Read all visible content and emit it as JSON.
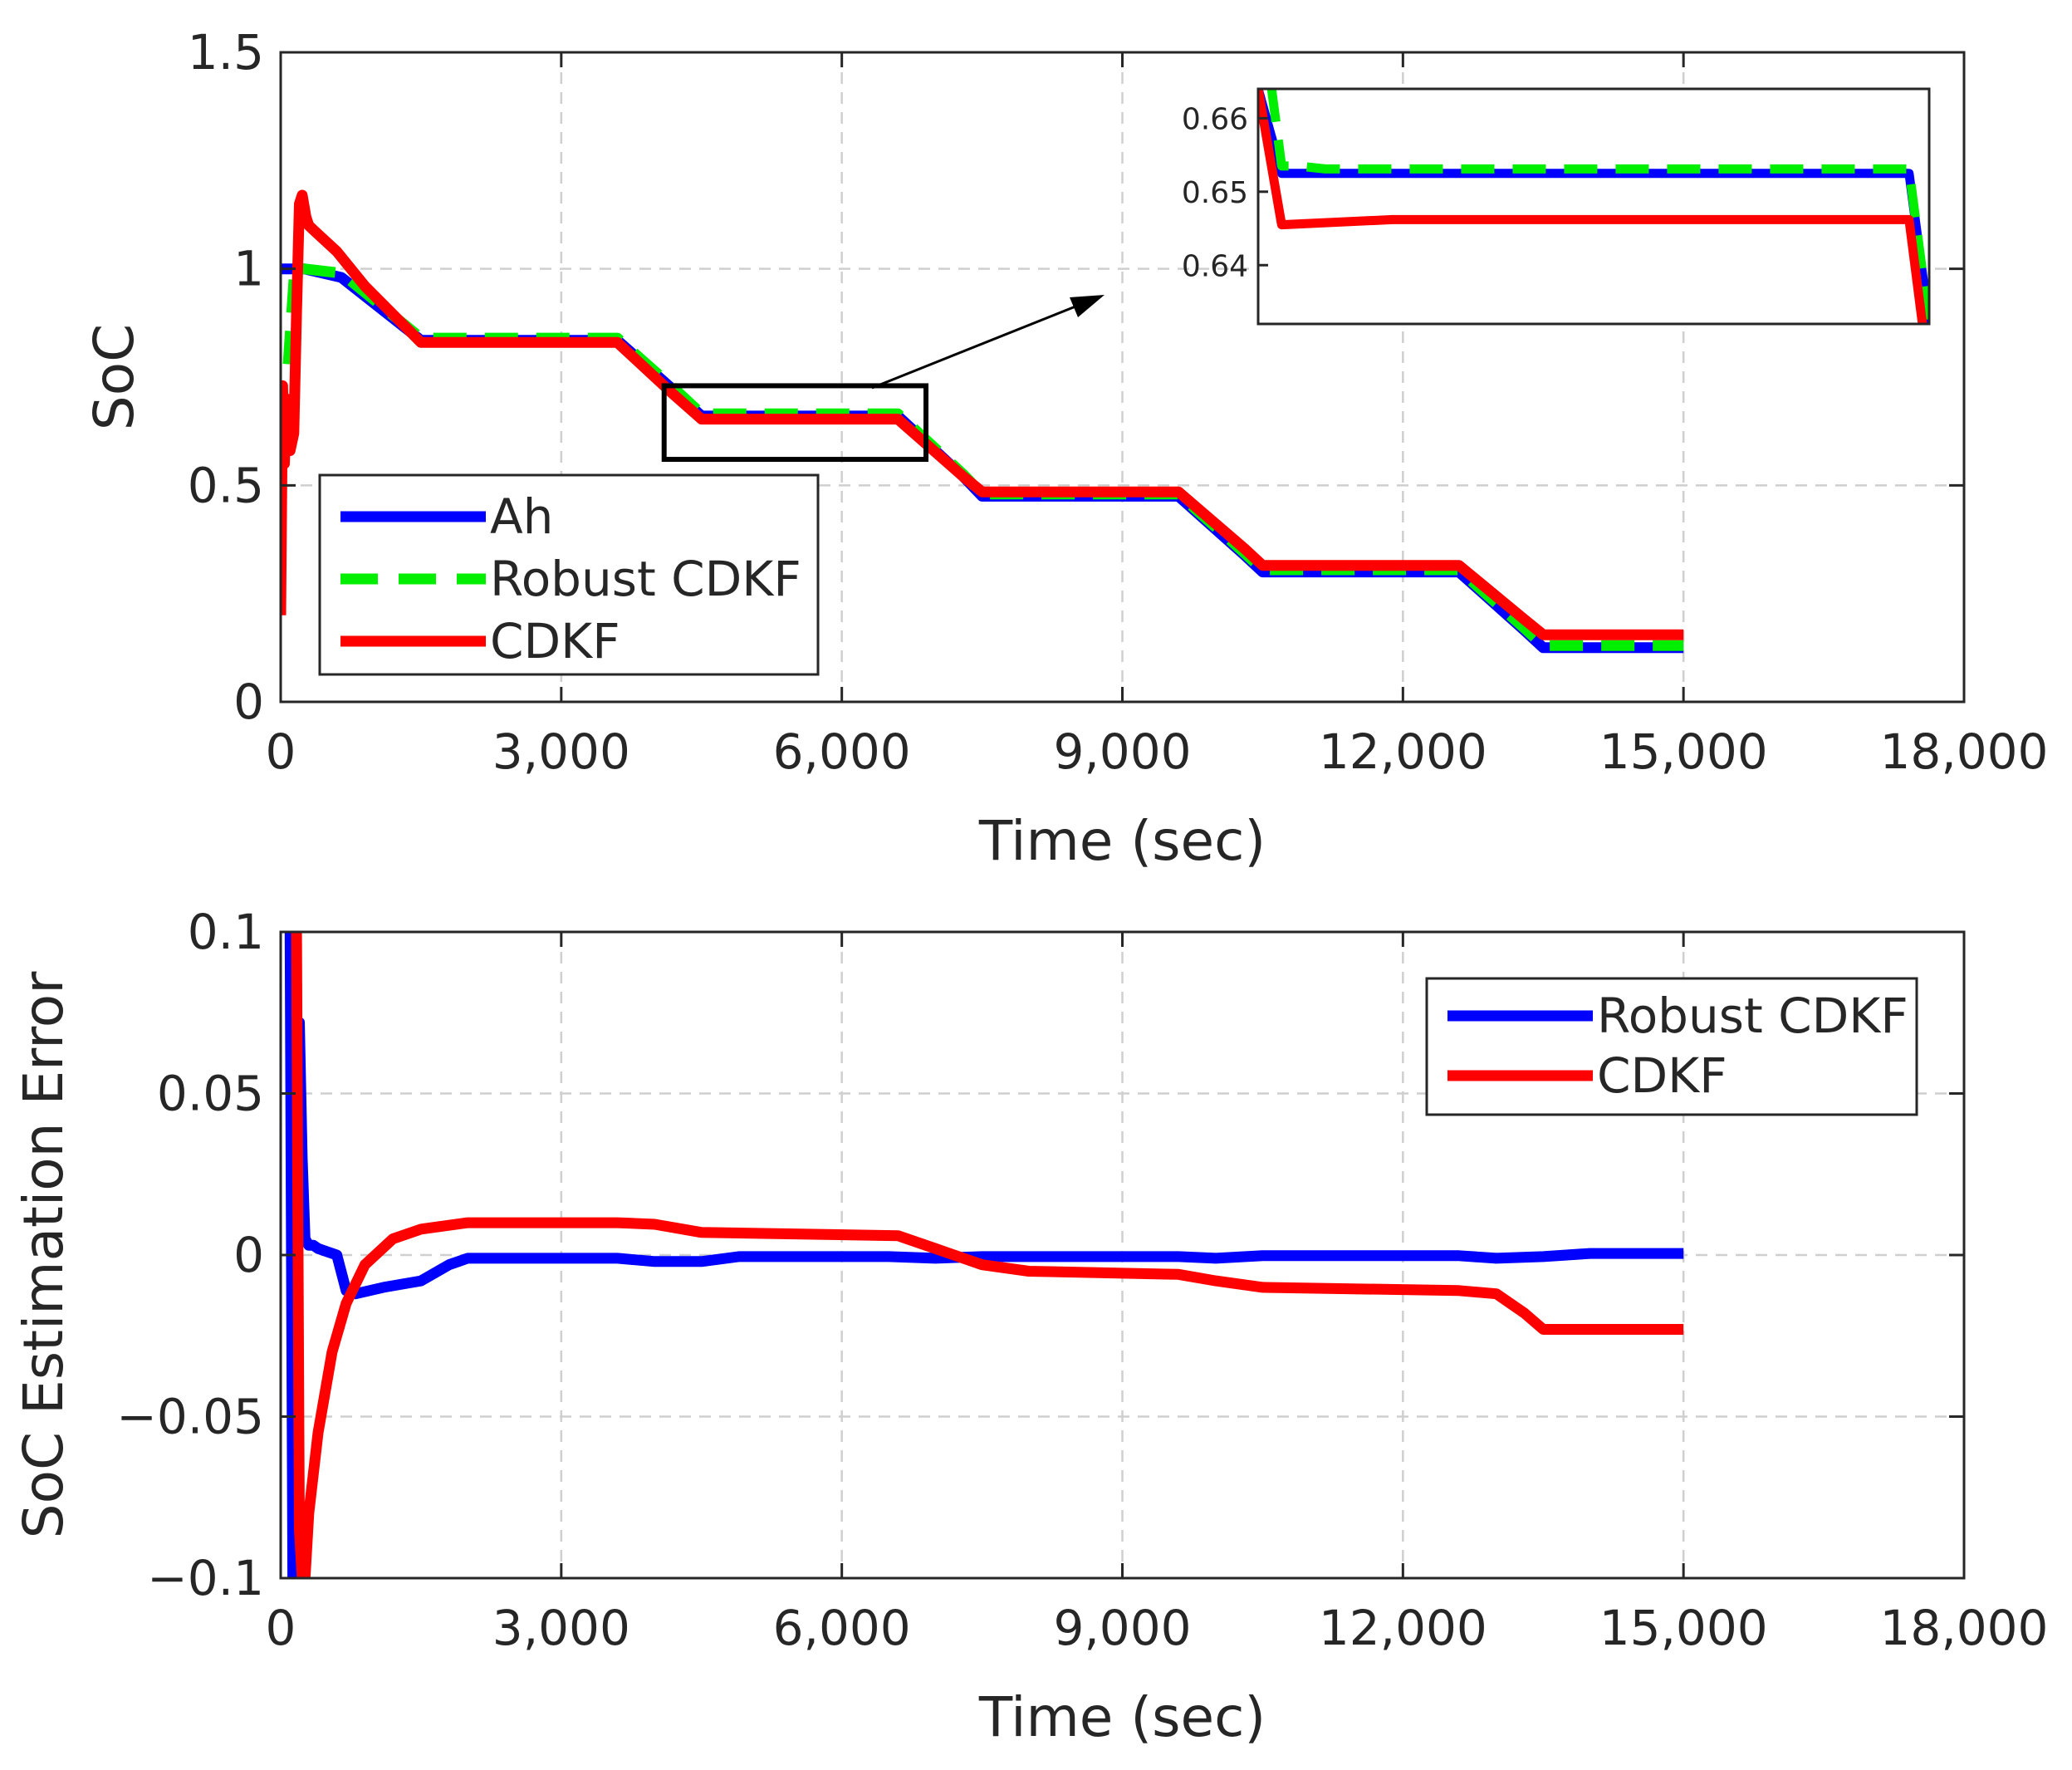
{
  "colors": {
    "ah": "#0000ff",
    "robust_cdkf": "#00ee00",
    "cdkf": "#ff0000",
    "axes": "#262626",
    "grid": "#cfcfcf"
  },
  "chart_data": [
    {
      "type": "line",
      "xlabel": "Time (sec)",
      "ylabel": "SoC",
      "xlim": [
        0,
        18000
      ],
      "ylim": [
        0,
        1.5
      ],
      "xticks": [
        0,
        3000,
        6000,
        9000,
        12000,
        15000,
        18000
      ],
      "xtick_labels": [
        "0",
        "3,000",
        "6,000",
        "9,000",
        "12,000",
        "15,000",
        "18,000"
      ],
      "yticks": [
        0,
        0.5,
        1,
        1.5
      ],
      "ytick_labels": [
        "0",
        "0.5",
        "1",
        "1.5"
      ],
      "grid": true,
      "legend_position": "bottom-left",
      "series": [
        {
          "name": "Ah",
          "style": "solid",
          "color": "#0000ff",
          "x": [
            0,
            250,
            650,
            1500,
            3600,
            4200,
            4500,
            6600,
            7300,
            7500,
            9600,
            10300,
            10500,
            12600,
            13300,
            13500,
            15000
          ],
          "y": [
            1.0,
            1.0,
            0.98,
            0.835,
            0.835,
            0.72,
            0.66,
            0.66,
            0.52,
            0.475,
            0.475,
            0.34,
            0.3,
            0.3,
            0.165,
            0.125,
            0.125
          ]
        },
        {
          "name": "Robust CDKF",
          "style": "dashed",
          "color": "#00ee00",
          "x": [
            80,
            150,
            250,
            650,
            1500,
            3600,
            4200,
            4500,
            6600,
            7300,
            7500,
            9600,
            10300,
            10500,
            12600,
            13300,
            13500,
            15000
          ],
          "y": [
            0.78,
            1.0,
            1.0,
            0.99,
            0.84,
            0.84,
            0.725,
            0.665,
            0.665,
            0.525,
            0.48,
            0.48,
            0.345,
            0.305,
            0.305,
            0.17,
            0.13,
            0.13
          ]
        },
        {
          "name": "CDKF",
          "style": "solid",
          "color": "#ff0000",
          "x": [
            0,
            20,
            40,
            60,
            100,
            140,
            170,
            200,
            230,
            270,
            300,
            400,
            600,
            900,
            1500,
            3600,
            4200,
            4500,
            6600,
            7300,
            7500,
            9600,
            10300,
            10500,
            12600,
            13300,
            13500,
            15000
          ],
          "y": [
            0.2,
            0.73,
            0.55,
            0.7,
            0.58,
            0.62,
            0.9,
            1.15,
            1.17,
            1.12,
            1.1,
            1.08,
            1.04,
            0.96,
            0.83,
            0.83,
            0.71,
            0.653,
            0.653,
            0.52,
            0.485,
            0.485,
            0.355,
            0.315,
            0.315,
            0.19,
            0.155,
            0.155
          ]
        }
      ],
      "legend": [
        "Ah",
        "Robust CDKF",
        "CDKF"
      ],
      "zoom_box": {
        "x_range": [
          4100,
          6900
        ],
        "y_range": [
          0.56,
          0.73
        ]
      },
      "inset": {
        "ylim": [
          0.632,
          0.664
        ],
        "yticks": [
          0.64,
          0.65,
          0.66
        ],
        "ytick_labels": [
          "0.64",
          "0.65",
          "0.66"
        ],
        "series": [
          {
            "name": "Ah",
            "x": [
              0,
              0.035,
              0.97,
              1.0
            ],
            "y": [
              0.664,
              0.6525,
              0.6525,
              0.632
            ]
          },
          {
            "name": "Robust CDKF",
            "x": [
              0.02,
              0.035,
              0.06,
              0.1,
              0.97,
              1.0
            ],
            "y": [
              0.664,
              0.6535,
              0.6535,
              0.6531,
              0.6531,
              0.632
            ]
          },
          {
            "name": "CDKF",
            "x": [
              0,
              0.035,
              0.2,
              0.97,
              0.99
            ],
            "y": [
              0.664,
              0.6455,
              0.6462,
              0.6462,
              0.632
            ]
          }
        ]
      }
    },
    {
      "type": "line",
      "xlabel": "Time (sec)",
      "ylabel": "SoC Estimation Error",
      "xlim": [
        0,
        18000
      ],
      "ylim": [
        -0.1,
        0.1
      ],
      "xticks": [
        0,
        3000,
        6000,
        9000,
        12000,
        15000,
        18000
      ],
      "xtick_labels": [
        "0",
        "3,000",
        "6,000",
        "9,000",
        "12,000",
        "15,000",
        "18,000"
      ],
      "yticks": [
        -0.1,
        -0.05,
        0,
        0.05,
        0.1
      ],
      "ytick_labels": [
        "−0.1",
        "−0.05",
        "0",
        "0.05",
        "0.1"
      ],
      "grid": true,
      "legend_position": "top-right",
      "series": [
        {
          "name": "Robust CDKF",
          "style": "solid",
          "color": "#0000ff",
          "x": [
            100,
            130,
            170,
            200,
            230,
            260,
            300,
            350,
            400,
            500,
            600,
            700,
            800,
            1100,
            1500,
            1800,
            2000,
            3600,
            4000,
            4500,
            4900,
            6500,
            7000,
            7500,
            9600,
            10000,
            10500,
            12600,
            13000,
            13500,
            14000,
            15000
          ],
          "y": [
            0.1,
            -0.1,
            0.07,
            0.072,
            0.03,
            0.005,
            0.003,
            0.003,
            0.002,
            0.001,
            0.0,
            -0.011,
            -0.012,
            -0.01,
            -0.008,
            -0.003,
            -0.001,
            -0.001,
            -0.002,
            -0.002,
            -0.0005,
            -0.0005,
            -0.001,
            -0.0005,
            -0.0005,
            -0.001,
            -0.0002,
            -0.0002,
            -0.001,
            -0.0005,
            0.0005,
            0.0005
          ]
        },
        {
          "name": "CDKF",
          "style": "solid",
          "color": "#ff0000",
          "x": [
            150,
            170,
            200,
            230,
            260,
            300,
            400,
            550,
            700,
            900,
            1200,
            1500,
            2000,
            3600,
            4000,
            4500,
            6600,
            7000,
            7500,
            8000,
            9600,
            10000,
            10500,
            12600,
            13000,
            13300,
            13500,
            15000
          ],
          "y": [
            0.1,
            0.1,
            -0.085,
            -0.1,
            -0.1,
            -0.08,
            -0.055,
            -0.03,
            -0.015,
            -0.003,
            0.005,
            0.008,
            0.01,
            0.01,
            0.0095,
            0.007,
            0.006,
            0.002,
            -0.003,
            -0.005,
            -0.006,
            -0.008,
            -0.01,
            -0.011,
            -0.012,
            -0.018,
            -0.023,
            -0.023
          ]
        }
      ],
      "legend": [
        "Robust CDKF",
        "CDKF"
      ]
    }
  ]
}
